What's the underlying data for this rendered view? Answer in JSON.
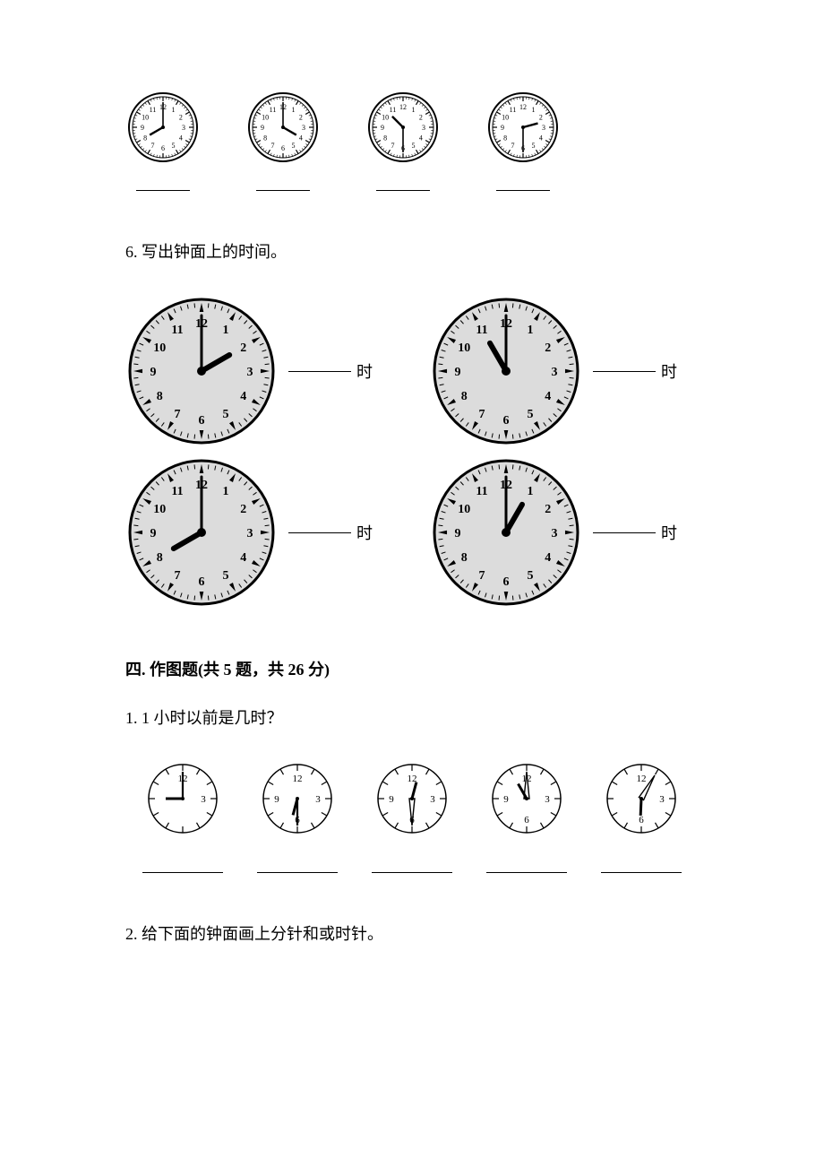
{
  "colors": {
    "stroke": "#000000",
    "fill_white": "#ffffff",
    "fill_grey": "#dcdcdc",
    "blank": "#000000"
  },
  "row1": {
    "clock_radius": 38,
    "stroke_width": 2,
    "inner_ring_gap": 4,
    "number_fontsize": 8,
    "clocks": [
      {
        "hour": 8,
        "minute": 0
      },
      {
        "hour": 4,
        "minute": 0
      },
      {
        "hour": 10,
        "minute": 30
      },
      {
        "hour": 2,
        "minute": 30
      }
    ]
  },
  "question6": {
    "label": "6. 写出钟面上的时间。",
    "unit": "时",
    "clock_radius": 80,
    "stroke_width": 3,
    "hub_radius": 5,
    "number_fontsize": 14,
    "clocks": [
      {
        "hour": 2,
        "minute": 0
      },
      {
        "hour": 11,
        "minute": 0
      },
      {
        "hour": 8,
        "minute": 0
      },
      {
        "hour": 1,
        "minute": 0
      }
    ]
  },
  "section4": {
    "title": "四. 作图题(共 5 题，共 26 分)",
    "q1": {
      "label": "1. 1 小时以前是几时？",
      "clock_radius": 38,
      "stroke_width": 1.5,
      "number_fontsize": 11,
      "clocks": [
        {
          "show_numbers": [
            12,
            3
          ],
          "hour_from_12": true,
          "hour": 9,
          "minute": 0,
          "open_hand": false
        },
        {
          "show_numbers": [
            12,
            3,
            6,
            9
          ],
          "hour_from_12": true,
          "hour": 6,
          "minute": 30,
          "open_hand": false
        },
        {
          "show_numbers": [
            12,
            3,
            6,
            9
          ],
          "hour_from_12": true,
          "hour": 12,
          "minute": 30,
          "open_hand": true
        },
        {
          "show_numbers": [
            12,
            3,
            6,
            9
          ],
          "hour_from_12": true,
          "hour": 11,
          "minute": 0,
          "open_hand": true
        },
        {
          "show_numbers": [
            12,
            3,
            6
          ],
          "hour_from_12": true,
          "hour": 6,
          "minute": 5,
          "open_hand": true
        }
      ]
    },
    "q2": {
      "label": "2. 给下面的钟面画上分针和或时针。"
    }
  }
}
